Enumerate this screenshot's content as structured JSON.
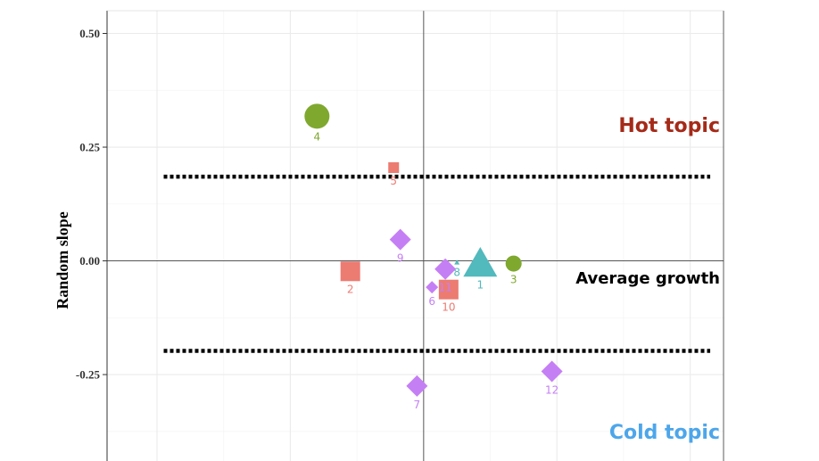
{
  "chart_data": {
    "type": "scatter",
    "ylabel": "Random slope",
    "xlabel": "",
    "ylim": [
      -0.44,
      0.55
    ],
    "xlim": [
      -0.95,
      0.9
    ],
    "yticks": [
      -0.25,
      0.0,
      0.25,
      0.5
    ],
    "ytick_labels": [
      "-0.25",
      "0.00",
      "0.25",
      "0.50"
    ],
    "grid": true,
    "reference_lines": {
      "vertical_x": 0.0,
      "horizontal_y": 0.0,
      "upper_threshold": 0.185,
      "lower_threshold": -0.198
    },
    "annotations": [
      {
        "text": "Hot topic",
        "color": "#a52a18"
      },
      {
        "text": "Average growth",
        "color": "#000000"
      },
      {
        "text": "Cold topic",
        "color": "#4da6ea"
      }
    ],
    "points": [
      {
        "label": "1",
        "x": 0.17,
        "y": -0.01,
        "shape": "triangle",
        "size": "large",
        "color": "#52b9bd"
      },
      {
        "label": "2",
        "x": -0.22,
        "y": -0.023,
        "shape": "square",
        "size": "medium",
        "color": "#ec7b72"
      },
      {
        "label": "3",
        "x": 0.27,
        "y": -0.006,
        "shape": "circle",
        "size": "small",
        "color": "#7fa82f"
      },
      {
        "label": "4",
        "x": -0.32,
        "y": 0.318,
        "shape": "circle",
        "size": "large",
        "color": "#7fa82f"
      },
      {
        "label": "5",
        "x": -0.09,
        "y": 0.205,
        "shape": "square",
        "size": "small",
        "color": "#ec7b72"
      },
      {
        "label": "6",
        "x": 0.025,
        "y": -0.058,
        "shape": "diamond",
        "size": "small",
        "color": "#c57ff5"
      },
      {
        "label": "7",
        "x": -0.02,
        "y": -0.275,
        "shape": "diamond",
        "size": "medium",
        "color": "#c57ff5"
      },
      {
        "label": "8",
        "x": 0.1,
        "y": -0.004,
        "shape": "triangle",
        "size": "tiny",
        "color": "#52b9bd"
      },
      {
        "label": "9",
        "x": -0.07,
        "y": 0.047,
        "shape": "diamond",
        "size": "medium",
        "color": "#c57ff5"
      },
      {
        "label": "10",
        "x": 0.075,
        "y": -0.063,
        "shape": "square",
        "size": "medium",
        "color": "#ec7b72"
      },
      {
        "label": "11",
        "x": 0.065,
        "y": -0.018,
        "shape": "diamond",
        "size": "medium",
        "color": "#c57ff5"
      },
      {
        "label": "12",
        "x": 0.385,
        "y": -0.243,
        "shape": "diamond",
        "size": "medium",
        "color": "#c57ff5"
      }
    ]
  }
}
